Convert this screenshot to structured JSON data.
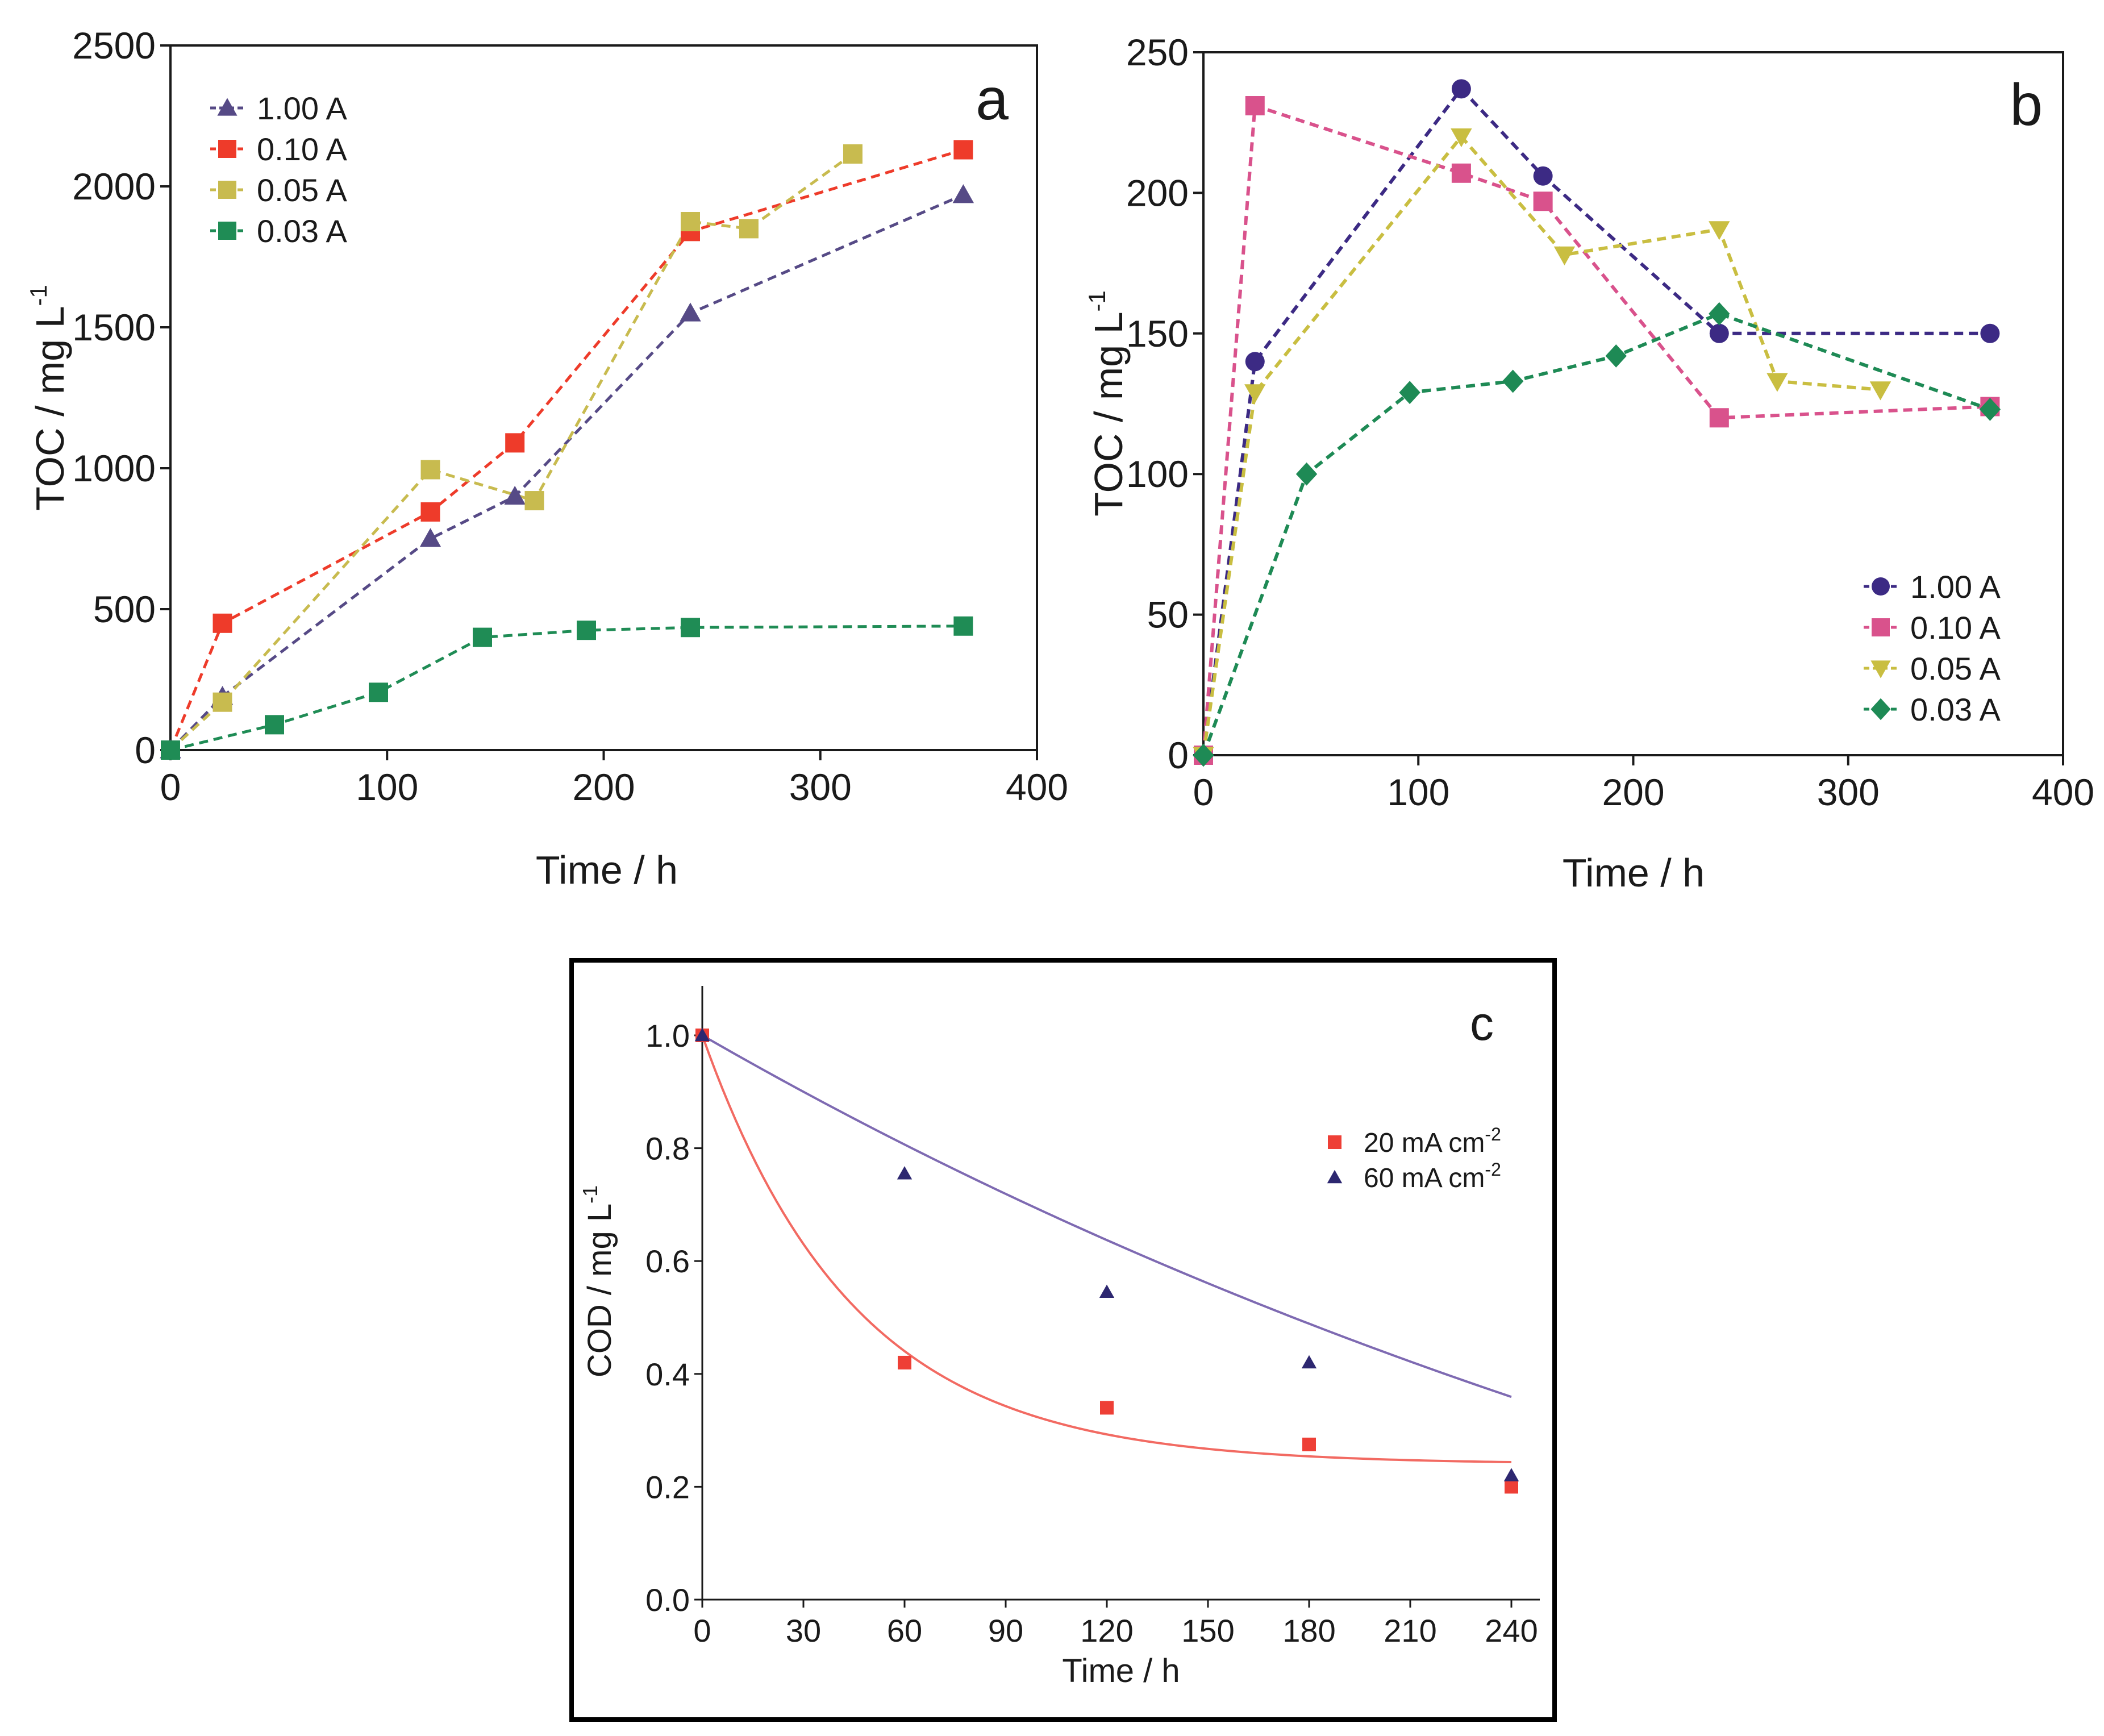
{
  "colors": {
    "axis": "#1a1a1a",
    "a_1": "#564a86",
    "a_2": "#ee3b2a",
    "a_3": "#c8bb4f",
    "a_4": "#1f8c55",
    "b_1": "#3c2a84",
    "b_2": "#d9528c",
    "b_3": "#c9be41",
    "b_4": "#1e8a55",
    "c_1": "#ee3f36",
    "c_2": "#2d2770",
    "c_fit1": "#f26a62",
    "c_fit2": "#7e6ab2"
  },
  "chart_data": [
    {
      "panel": "a",
      "type": "line",
      "ylabel": "TOC / mg L",
      "ylabel_sup": "-1",
      "xlabel": "Time / h",
      "xlim": [
        0,
        400
      ],
      "ylim": [
        0,
        2500
      ],
      "xticks": [
        0,
        100,
        200,
        300,
        400
      ],
      "yticks": [
        0,
        500,
        1000,
        1500,
        2000,
        2500
      ],
      "legend_position": "top-left",
      "series": [
        {
          "name": "1.00 A",
          "marker": "triangle-up",
          "color_key": "a_1",
          "x": [
            0,
            24,
            120,
            159,
            240,
            366
          ],
          "y": [
            0,
            190,
            750,
            900,
            1550,
            1970
          ]
        },
        {
          "name": "0.10 A",
          "marker": "square",
          "color_key": "a_2",
          "x": [
            0,
            24,
            120,
            159,
            240,
            366
          ],
          "y": [
            0,
            450,
            845,
            1090,
            1840,
            2130
          ]
        },
        {
          "name": "0.05 A",
          "marker": "square",
          "color_key": "a_3",
          "x": [
            0,
            24,
            120,
            168,
            240,
            267,
            315
          ],
          "y": [
            0,
            170,
            995,
            885,
            1875,
            1850,
            2115
          ]
        },
        {
          "name": "0.03 A",
          "marker": "square",
          "color_key": "a_4",
          "x": [
            0,
            48,
            96,
            144,
            192,
            240,
            366
          ],
          "y": [
            0,
            90,
            205,
            400,
            425,
            435,
            440
          ]
        }
      ]
    },
    {
      "panel": "b",
      "type": "line",
      "ylabel": "TOC / mg L",
      "ylabel_sup": "-1",
      "xlabel": "Time / h",
      "xlim": [
        0,
        400
      ],
      "ylim": [
        0,
        250
      ],
      "xticks": [
        0,
        100,
        200,
        300,
        400
      ],
      "yticks": [
        0,
        50,
        100,
        150,
        200,
        250
      ],
      "legend_position": "bottom-right",
      "series": [
        {
          "name": "1.00 A",
          "marker": "circle",
          "color_key": "b_1",
          "x": [
            0,
            24,
            120,
            158,
            240,
            366
          ],
          "y": [
            0,
            140,
            237,
            206,
            150,
            150
          ]
        },
        {
          "name": "0.10 A",
          "marker": "square",
          "color_key": "b_2",
          "x": [
            0,
            24,
            120,
            158,
            240,
            366
          ],
          "y": [
            0,
            231,
            207,
            197,
            120,
            124
          ]
        },
        {
          "name": "0.05 A",
          "marker": "triangle-down",
          "color_key": "b_3",
          "x": [
            0,
            24,
            120,
            168,
            240,
            267,
            315
          ],
          "y": [
            0,
            129,
            220,
            178,
            187,
            133,
            130
          ]
        },
        {
          "name": "0.03 A",
          "marker": "diamond",
          "color_key": "b_4",
          "x": [
            0,
            48,
            96,
            144,
            192,
            240,
            366
          ],
          "y": [
            0,
            100,
            129,
            133,
            142,
            157,
            123
          ]
        }
      ]
    },
    {
      "panel": "c",
      "type": "scatter",
      "ylabel": "COD / mg L",
      "ylabel_sup": "-1",
      "xlabel": "Time / h",
      "xlim": [
        0,
        250
      ],
      "ylim": [
        0,
        1.1
      ],
      "xticks": [
        0,
        30,
        60,
        90,
        120,
        150,
        180,
        210,
        240
      ],
      "yticks": [
        "0.0",
        "0.2",
        "0.4",
        "0.6",
        "0.8",
        "1.0"
      ],
      "legend_position": "top-right",
      "series": [
        {
          "name": "20 mA cm",
          "name_sup": "-2",
          "marker": "square",
          "color_key": "c_1",
          "fit_color_key": "c_fit1",
          "x": [
            0,
            60,
            120,
            180,
            240
          ],
          "y": [
            1.0,
            0.42,
            0.34,
            0.275,
            0.2
          ],
          "fit": {
            "form": "exp_decay",
            "offset": 0.24,
            "amplitude": 0.76,
            "tau": 45
          }
        },
        {
          "name": "60 mA cm",
          "name_sup": "-2",
          "marker": "triangle-up",
          "color_key": "c_2",
          "fit_color_key": "c_fit2",
          "x": [
            0,
            60,
            120,
            180,
            240
          ],
          "y": [
            1.0,
            0.755,
            0.545,
            0.42,
            0.22
          ],
          "fit": {
            "form": "exp_decay",
            "offset": -0.55,
            "amplitude": 1.55,
            "tau": 450
          }
        }
      ]
    }
  ],
  "labels": {
    "panel_a": "a",
    "panel_b": "b",
    "panel_c": "c"
  }
}
